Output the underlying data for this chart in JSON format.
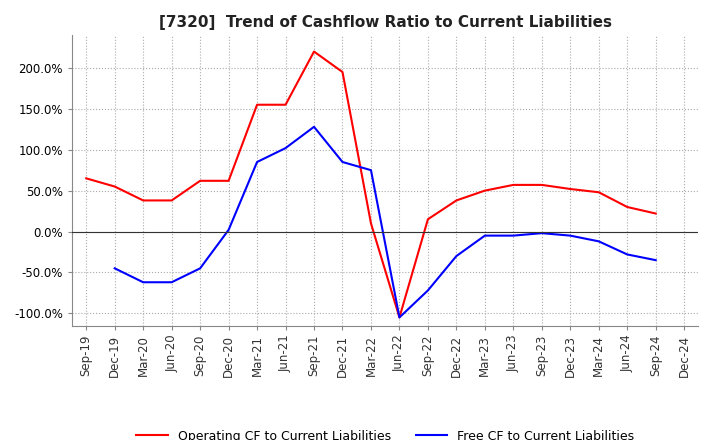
{
  "title": "[7320]  Trend of Cashflow Ratio to Current Liabilities",
  "x_labels": [
    "Sep-19",
    "Dec-19",
    "Mar-20",
    "Jun-20",
    "Sep-20",
    "Dec-20",
    "Mar-21",
    "Jun-21",
    "Sep-21",
    "Dec-21",
    "Mar-22",
    "Jun-22",
    "Sep-22",
    "Dec-22",
    "Mar-23",
    "Jun-23",
    "Sep-23",
    "Dec-23",
    "Mar-24",
    "Jun-24",
    "Sep-24",
    "Dec-24"
  ],
  "operating_cf": [
    0.65,
    0.55,
    0.38,
    0.38,
    0.62,
    0.62,
    1.55,
    1.55,
    2.2,
    1.95,
    0.1,
    -1.05,
    0.15,
    0.38,
    0.5,
    0.57,
    0.57,
    0.52,
    0.48,
    0.3,
    0.22,
    null
  ],
  "free_cf": [
    null,
    -0.45,
    -0.62,
    -0.62,
    -0.45,
    0.02,
    0.85,
    1.02,
    1.28,
    0.85,
    0.75,
    -1.05,
    -0.72,
    -0.3,
    -0.05,
    -0.05,
    -0.02,
    -0.05,
    -0.12,
    -0.28,
    -0.35,
    null
  ],
  "ylim": [
    -1.15,
    2.4
  ],
  "yticks": [
    -1.0,
    -0.5,
    0.0,
    0.5,
    1.0,
    1.5,
    2.0
  ],
  "operating_color": "#ff0000",
  "free_color": "#0000ff",
  "grid_color": "#aaaaaa",
  "background_color": "#ffffff",
  "title_fontsize": 11,
  "tick_fontsize": 8.5,
  "legend_fontsize": 9
}
